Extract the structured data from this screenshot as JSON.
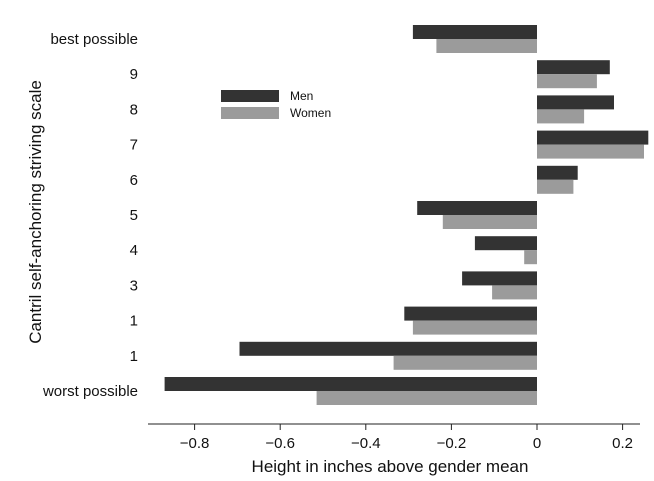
{
  "chart_data": {
    "type": "bar",
    "orientation": "horizontal",
    "title": "",
    "xlabel": "Height in inches above gender mean",
    "ylabel": "Cantril self-anchoring striving scale",
    "categories": [
      "best possible",
      "9",
      "8",
      "7",
      "6",
      "5",
      "4",
      "3",
      "1",
      "1",
      "worst possible"
    ],
    "series": [
      {
        "name": "Men",
        "color": "#333333",
        "values": [
          -0.29,
          0.17,
          0.18,
          0.26,
          0.095,
          -0.28,
          -0.145,
          -0.175,
          -0.31,
          -0.695,
          -0.87
        ]
      },
      {
        "name": "Women",
        "color": "#9b9b9b",
        "values": [
          -0.235,
          0.14,
          0.11,
          0.25,
          0.085,
          -0.22,
          -0.03,
          -0.105,
          -0.29,
          -0.335,
          -0.515
        ]
      }
    ],
    "xlim": [
      -0.9,
      0.25
    ],
    "xticks": [
      -0.8,
      -0.6,
      -0.4,
      -0.2,
      0,
      0.2
    ],
    "xtick_labels": [
      "−0.8",
      "−0.6",
      "−0.4",
      "−0.2",
      "0",
      "0.2"
    ],
    "grid": false,
    "legend_position": "upper-left-inside"
  }
}
